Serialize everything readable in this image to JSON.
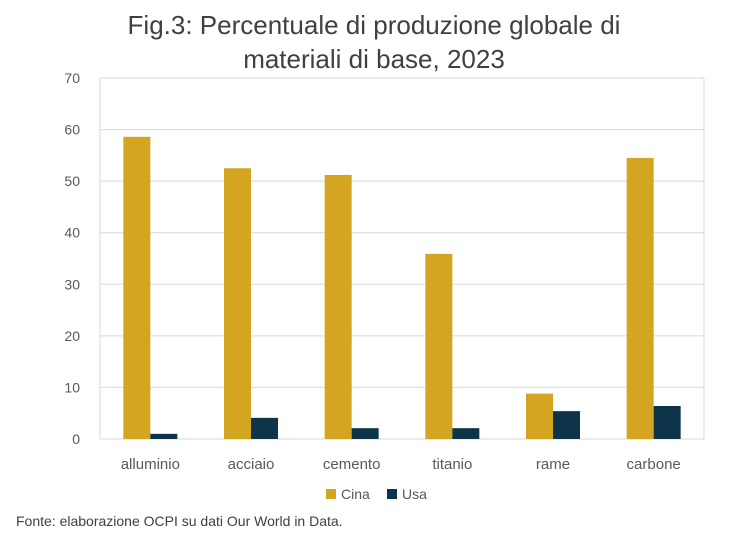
{
  "chart_data": {
    "type": "bar",
    "title_line1": "Fig.3: Percentuale di produzione globale di",
    "title_line2": "materiali di base, 2023",
    "categories": [
      "alluminio",
      "acciaio",
      "cemento",
      "titanio",
      "rame",
      "carbone"
    ],
    "series": [
      {
        "name": "Cina",
        "color": "#D4A521",
        "values": [
          58.6,
          52.5,
          51.2,
          35.9,
          8.8,
          54.5
        ]
      },
      {
        "name": "Usa",
        "color": "#0D3449",
        "values": [
          1.0,
          4.1,
          2.1,
          2.1,
          5.4,
          6.4
        ]
      }
    ],
    "ylim": [
      0,
      70
    ],
    "yticks": [
      0,
      10,
      20,
      30,
      40,
      50,
      60,
      70
    ],
    "grid": true,
    "legend": "bottom-center"
  },
  "source": "Fonte: elaborazione OCPI su dati Our World in Data."
}
